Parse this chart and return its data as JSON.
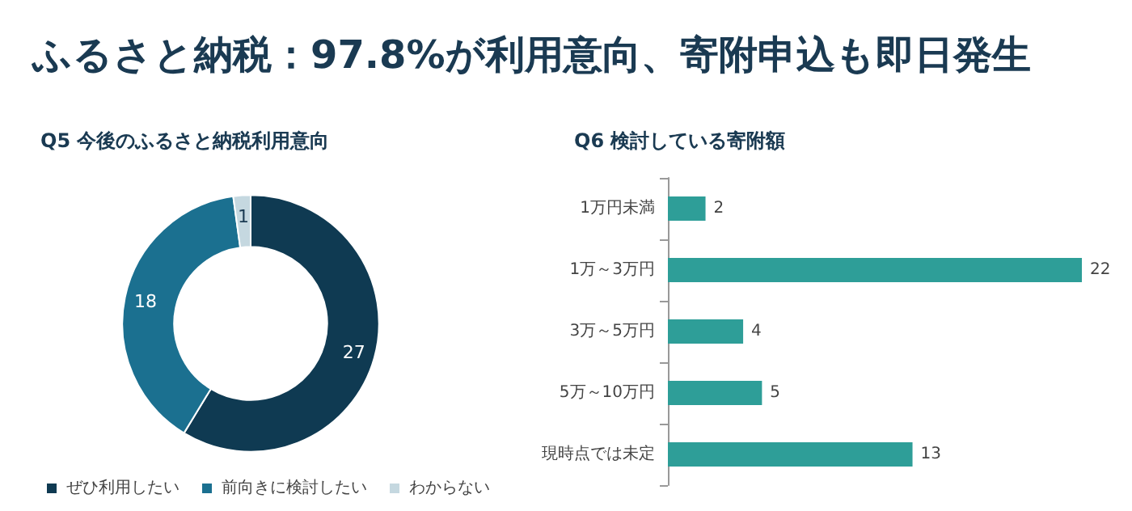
{
  "chart_data": [
    {
      "type": "other",
      "title": "ふるさと納税：97.8%が利用意向、寄附申込も即日発生"
    },
    {
      "type": "donut",
      "title": "Q5 今後のふるさと納税利用意向",
      "categories": [
        "ぜひ利用したい",
        "前向きに検討したい",
        "わからない"
      ],
      "values": [
        27,
        18,
        1
      ],
      "colors": [
        "#0f3a52",
        "#1b7090",
        "#c5d8e0"
      ],
      "data_labels": true,
      "legend": "bottom"
    },
    {
      "type": "bar",
      "orientation": "horizontal",
      "title": "Q6 検討している寄附額",
      "categories": [
        "1万円未満",
        "1万～3万円",
        "3万～5万円",
        "5万～10万円",
        "現時点では未定"
      ],
      "values": [
        2,
        22,
        4,
        5,
        13
      ],
      "color": "#2e9e98",
      "data_labels": true
    }
  ]
}
